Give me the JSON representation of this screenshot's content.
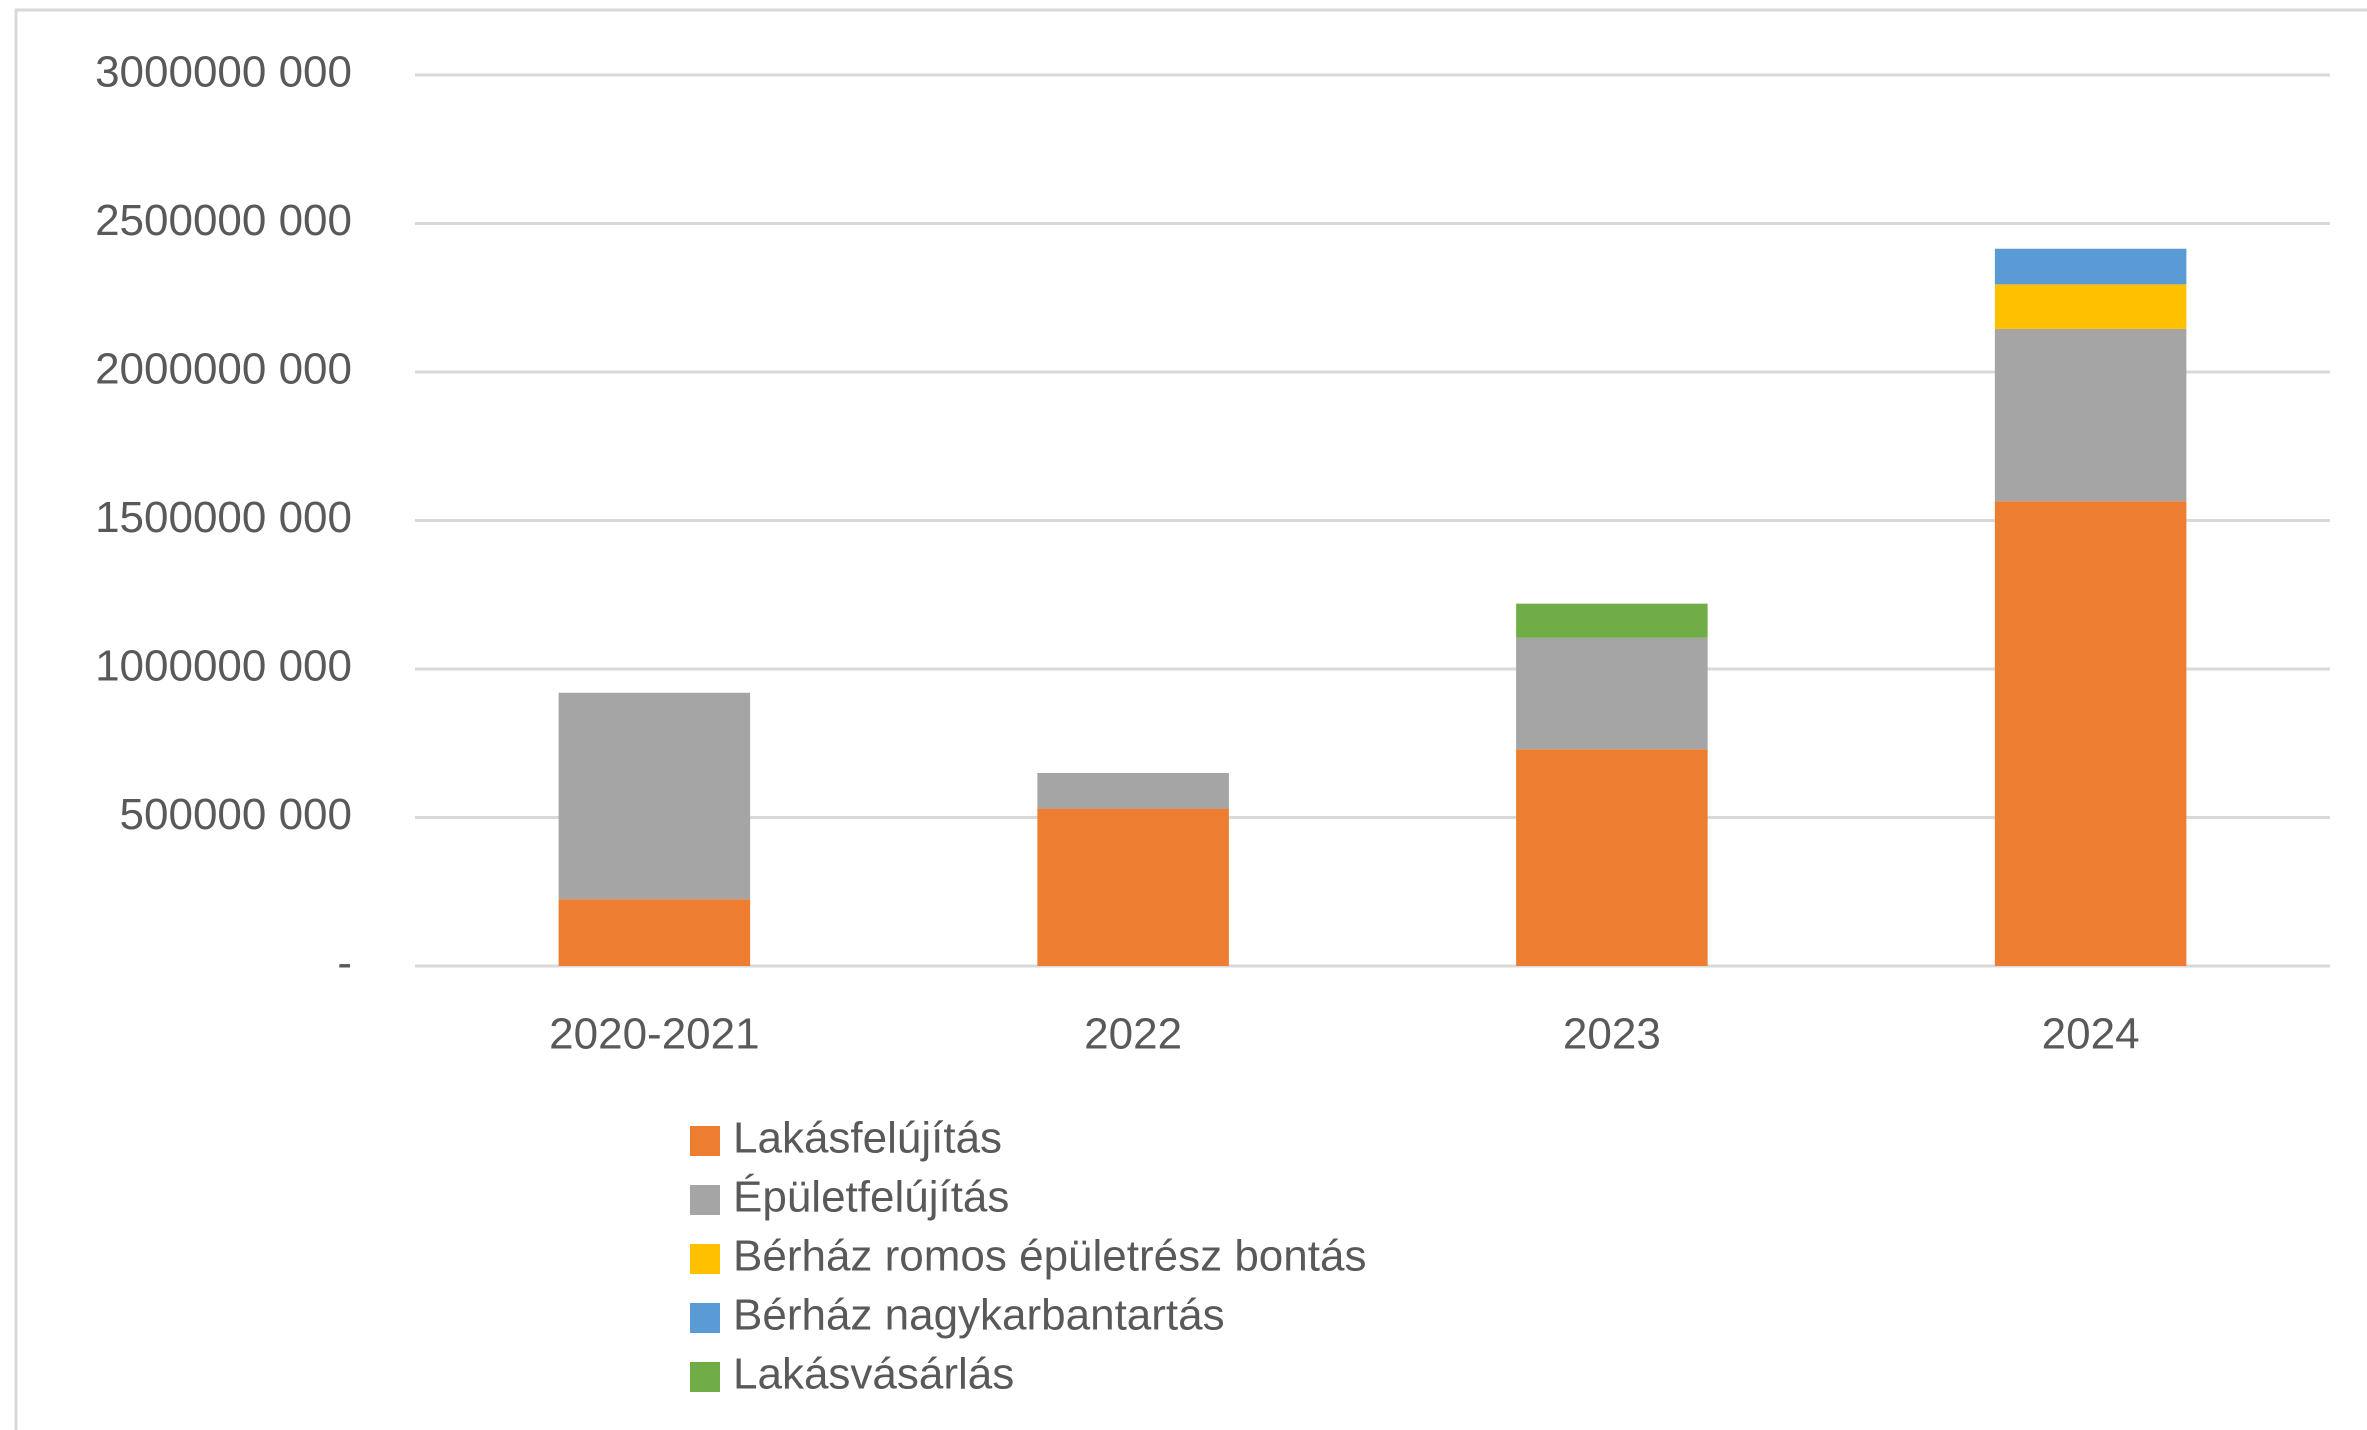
{
  "chart_data": {
    "type": "bar",
    "stacked": true,
    "categories": [
      "2020-2021",
      "2022",
      "2023",
      "2024"
    ],
    "series": [
      {
        "name": "Lakásfelújítás",
        "color": "#ED7D31",
        "values": [
          225000000,
          530000000,
          730000000,
          1565000000
        ]
      },
      {
        "name": "Épületfelújítás",
        "color": "#A5A5A5",
        "values": [
          695000000,
          120000000,
          375000000,
          580000000
        ]
      },
      {
        "name": "Bérház romos épületrész bontás",
        "color": "#FFC000",
        "values": [
          null,
          null,
          null,
          150000000
        ]
      },
      {
        "name": "Bérház nagykarbantartás",
        "color": "#5B9BD5",
        "values": [
          null,
          null,
          null,
          120000000
        ]
      },
      {
        "name": "Lakásvásárlás",
        "color": "#70AD47",
        "values": [
          null,
          null,
          115000000,
          null
        ]
      }
    ],
    "ylim": [
      0,
      3000000000
    ],
    "yticks": [
      {
        "value": 0,
        "label": "-"
      },
      {
        "value": 500000000,
        "label": "500000 000"
      },
      {
        "value": 1000000000,
        "label": "1000000 000"
      },
      {
        "value": 1500000000,
        "label": "1500000 000"
      },
      {
        "value": 2000000000,
        "label": "2000000 000"
      },
      {
        "value": 2500000000,
        "label": "2500000 000"
      },
      {
        "value": 3000000000,
        "label": "3000000 000"
      }
    ],
    "grid": true,
    "legend": "bottom"
  }
}
